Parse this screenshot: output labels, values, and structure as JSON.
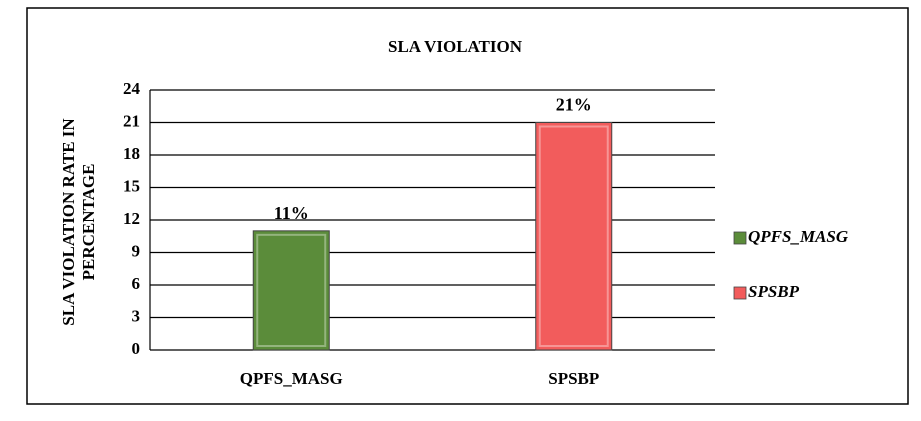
{
  "chart_data": {
    "type": "bar",
    "title": "SLA VIOLATION",
    "y_label": [
      "SLA VIOLATION RATE IN",
      "PERCENTAGE"
    ],
    "categories": [
      "QPFS_MASG",
      "SPSBP"
    ],
    "series": [
      {
        "name": "QPFS_MASG",
        "color": "#5b8c3a",
        "values": [
          11,
          null
        ],
        "value_labels": [
          "11%",
          null
        ]
      },
      {
        "name": "SPSBP",
        "color": "#f25c5c",
        "values": [
          null,
          21
        ],
        "value_labels": [
          null,
          "21%"
        ]
      }
    ],
    "ylim": [
      0,
      24
    ],
    "yticks": [
      0,
      3,
      6,
      9,
      12,
      15,
      18,
      21,
      24
    ],
    "grid": true,
    "legend": "right"
  }
}
